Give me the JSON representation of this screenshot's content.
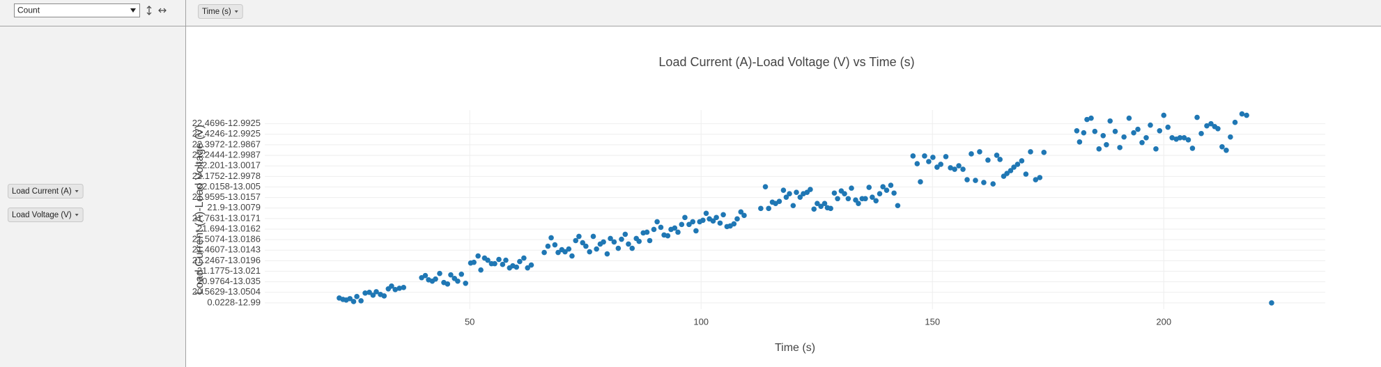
{
  "ui": {
    "aggregator": "Count",
    "column_fields": [
      "Time (s)"
    ],
    "row_fields": [
      "Load Current (A)",
      "Load Voltage (V)"
    ]
  },
  "chart_data": {
    "type": "scatter",
    "title": "Load Current (A)-Load Voltage (V) vs Time (s)",
    "xaxis_label": "Time (s)",
    "yaxis_label": "Load Current (A)-Load Voltage (V)",
    "color": "#1f77b4",
    "grid": true,
    "xlim": [
      5.7,
      234.9
    ],
    "xticks": [
      50,
      100,
      150,
      200
    ],
    "ylim": [
      -0.6,
      18.3
    ],
    "yticks": [
      {
        "value": 0,
        "label": "0.0228-12.99"
      },
      {
        "value": 1,
        "label": "20.5629-13.0504"
      },
      {
        "value": 2,
        "label": "20.9764-13.035"
      },
      {
        "value": 3,
        "label": "21.1775-13.021"
      },
      {
        "value": 4,
        "label": "21.2467-13.0196"
      },
      {
        "value": 5,
        "label": "21.4607-13.0143"
      },
      {
        "value": 6,
        "label": "21.5074-13.0186"
      },
      {
        "value": 7,
        "label": "21.694-13.0162"
      },
      {
        "value": 8,
        "label": "21.7631-13.0171"
      },
      {
        "value": 9,
        "label": "21.9-13.0079"
      },
      {
        "value": 10,
        "label": "21.9595-13.0157"
      },
      {
        "value": 11,
        "label": "22.0158-13.005"
      },
      {
        "value": 12,
        "label": "22.1752-12.9978"
      },
      {
        "value": 13,
        "label": "22.201-13.0017"
      },
      {
        "value": 14,
        "label": "22.2444-12.9987"
      },
      {
        "value": 15,
        "label": "22.3972-12.9867"
      },
      {
        "value": 16,
        "label": "22.4246-12.9925"
      },
      {
        "value": 17,
        "label": "22.4696-12.9925"
      }
    ],
    "x": [
      21.8,
      22.6,
      23.3,
      24.1,
      24.9,
      25.6,
      26.5,
      27.4,
      28.3,
      29.1,
      29.8,
      30.7,
      31.5,
      32.4,
      33.1,
      33.9,
      34.8,
      35.7,
      39.6,
      40.4,
      41.1,
      41.9,
      42.6,
      43.5,
      44.4,
      45.2,
      45.9,
      46.7,
      47.4,
      48.2,
      49.1,
      50.2,
      50.9,
      51.8,
      52.4,
      53.2,
      53.9,
      54.7,
      55.4,
      56.3,
      57.1,
      57.8,
      58.6,
      59.3,
      60.1,
      60.8,
      61.7,
      62.5,
      63.3,
      66.1,
      66.9,
      67.6,
      68.4,
      69.1,
      69.9,
      70.6,
      71.4,
      72.1,
      72.9,
      73.6,
      74.4,
      75.1,
      75.9,
      76.7,
      77.4,
      78.2,
      78.9,
      79.7,
      80.4,
      81.2,
      82.1,
      82.8,
      83.6,
      84.3,
      85.1,
      86.0,
      86.6,
      87.5,
      88.3,
      88.9,
      89.8,
      90.5,
      91.3,
      92.0,
      92.8,
      93.5,
      94.3,
      95.0,
      95.8,
      96.5,
      97.4,
      98.2,
      98.9,
      99.7,
      100.4,
      101.1,
      101.8,
      102.6,
      103.3,
      104.1,
      104.8,
      105.6,
      106.3,
      107.1,
      107.8,
      108.6,
      109.3,
      112.9,
      113.9,
      114.6,
      115.4,
      116.1,
      116.9,
      117.8,
      118.4,
      119.1,
      119.9,
      120.6,
      121.4,
      122.1,
      122.9,
      123.6,
      124.4,
      125.1,
      125.9,
      126.7,
      127.3,
      128.0,
      128.8,
      129.5,
      130.3,
      131.0,
      131.8,
      132.5,
      133.4,
      134.0,
      134.8,
      135.5,
      136.3,
      137.0,
      137.8,
      138.6,
      139.3,
      140.1,
      141.0,
      141.7,
      142.5,
      145.8,
      146.7,
      147.4,
      148.3,
      149.2,
      150.1,
      151.0,
      151.8,
      152.9,
      153.9,
      154.8,
      155.7,
      156.6,
      157.5,
      158.4,
      159.3,
      160.2,
      161.1,
      162.0,
      163.1,
      163.9,
      164.6,
      165.4,
      166.1,
      166.9,
      167.6,
      168.4,
      169.3,
      170.2,
      171.2,
      172.3,
      173.2,
      174.1,
      181.2,
      181.8,
      182.7,
      183.4,
      184.3,
      185.1,
      186.0,
      186.9,
      187.6,
      188.4,
      189.5,
      190.5,
      191.4,
      192.5,
      193.5,
      194.4,
      195.3,
      196.2,
      197.1,
      198.3,
      199.1,
      200.0,
      200.9,
      201.8,
      202.7,
      203.5,
      204.4,
      205.3,
      206.2,
      207.2,
      208.1,
      209.3,
      210.2,
      211.0,
      211.7,
      212.6,
      213.5,
      214.4,
      215.4,
      216.9,
      217.9,
      223.3
    ],
    "values": [
      0.46,
      0.33,
      0.27,
      0.4,
      0.13,
      0.6,
      0.2,
      0.93,
      1,
      0.73,
      1.06,
      0.8,
      0.66,
      1.33,
      1.59,
      1.26,
      1.39,
      1.46,
      2.39,
      2.59,
      2.19,
      2.06,
      2.26,
      2.79,
      1.93,
      1.79,
      2.66,
      2.32,
      2.06,
      2.72,
      1.86,
      3.78,
      3.85,
      4.45,
      3.12,
      4.25,
      4.05,
      3.72,
      3.72,
      4.12,
      3.65,
      4.05,
      3.32,
      3.52,
      3.39,
      3.92,
      4.25,
      3.32,
      3.59,
      4.78,
      5.38,
      6.18,
      5.51,
      4.78,
      5.05,
      4.85,
      5.11,
      4.45,
      5.91,
      6.31,
      5.71,
      5.38,
      4.85,
      6.31,
      5.11,
      5.58,
      5.78,
      4.65,
      6.11,
      5.78,
      5.18,
      6.04,
      6.51,
      5.58,
      5.18,
      6.11,
      5.84,
      6.64,
      6.71,
      5.91,
      6.97,
      7.7,
      7.17,
      6.44,
      6.37,
      6.97,
      7.1,
      6.71,
      7.44,
      8.1,
      7.44,
      7.7,
      6.84,
      7.7,
      7.84,
      8.5,
      7.97,
      7.77,
      8.1,
      7.57,
      8.37,
      7.24,
      7.3,
      7.5,
      7.97,
      8.63,
      8.3,
      8.96,
      11.02,
      8.96,
      9.56,
      9.43,
      9.63,
      10.69,
      10.03,
      10.36,
      9.23,
      10.49,
      10.03,
      10.36,
      10.49,
      10.76,
      8.9,
      9.43,
      9.16,
      9.43,
      9.03,
      8.96,
      10.42,
      9.89,
      10.62,
      10.36,
      9.89,
      10.89,
      9.76,
      9.43,
      9.89,
      9.89,
      10.96,
      10.03,
      9.69,
      10.36,
      11.02,
      10.69,
      11.16,
      10.42,
      9.23,
      13.94,
      13.21,
      11.49,
      13.94,
      13.41,
      13.81,
      12.88,
      13.15,
      13.88,
      12.82,
      12.68,
      13.01,
      12.68,
      11.69,
      14.14,
      11.62,
      14.34,
      11.42,
      13.55,
      11.29,
      14.01,
      13.61,
      12.02,
      12.28,
      12.55,
      12.88,
      13.15,
      13.48,
      12.22,
      14.34,
      11.69,
      11.89,
      14.28,
      16.33,
      15.27,
      16.14,
      17.4,
      17.53,
      16.27,
      14.61,
      15.87,
      15.01,
      17.26,
      16.27,
      14.74,
      15.74,
      17.53,
      16.14,
      16.47,
      15.21,
      15.67,
      16.87,
      14.61,
      16.33,
      17.8,
      16.67,
      15.67,
      15.54,
      15.67,
      15.67,
      15.47,
      14.67,
      17.6,
      16.07,
      16.8,
      17,
      16.73,
      16.53,
      14.81,
      14.48,
      15.74,
      17.13,
      17.93,
      17.8,
      0
    ]
  }
}
